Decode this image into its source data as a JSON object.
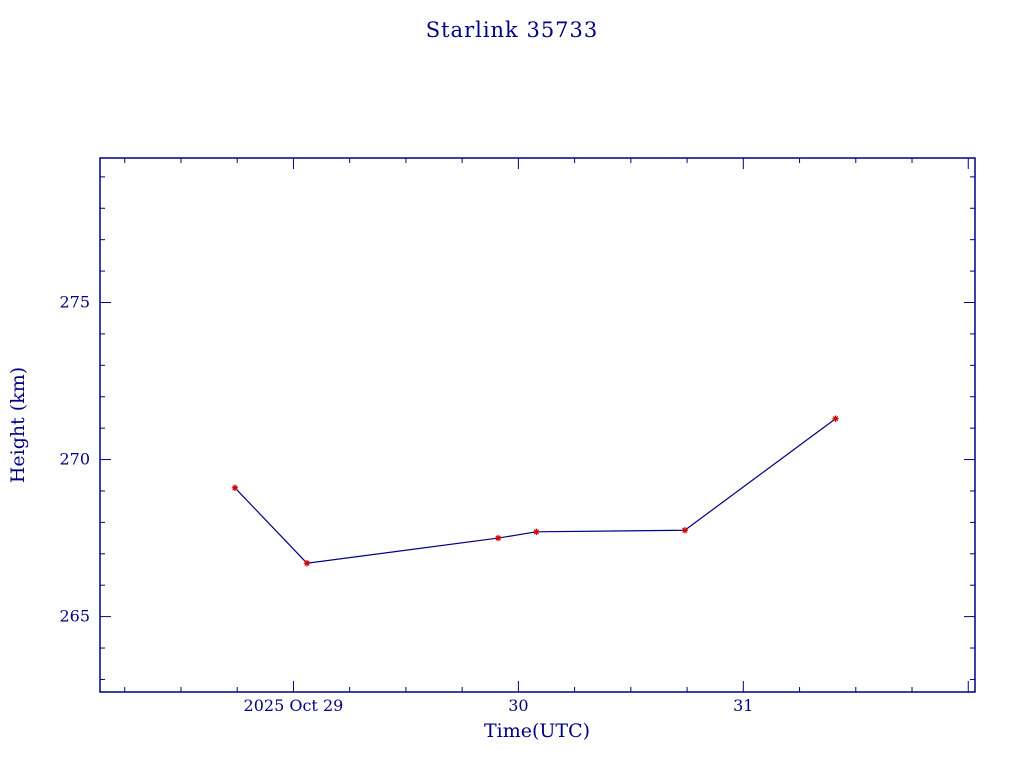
{
  "chart_data": {
    "type": "line",
    "title": "Starlink 35733",
    "xlabel": "Time(UTC)",
    "ylabel": "Height (km)",
    "x_unit": "day of month, 2025 Oct (fractional)",
    "xlim": [
      28.14,
      32.03
    ],
    "ylim": [
      262.6,
      279.6
    ],
    "grid": false,
    "legend": "none",
    "x_major_ticks": [
      {
        "value": 29,
        "label": "2025 Oct 29"
      },
      {
        "value": 30,
        "label": "30"
      },
      {
        "value": 31,
        "label": "31"
      }
    ],
    "x_minor_step": 0.25,
    "y_major_ticks": [
      {
        "value": 265,
        "label": "265"
      },
      {
        "value": 270,
        "label": "270"
      },
      {
        "value": 275,
        "label": "275"
      }
    ],
    "y_minor_step": 1,
    "series": [
      {
        "name": "height",
        "line_color": "#000080",
        "marker": "asterisk",
        "marker_color": "#cc0000",
        "points": [
          {
            "x": 28.74,
            "y": 269.1
          },
          {
            "x": 29.06,
            "y": 266.7
          },
          {
            "x": 29.91,
            "y": 267.5
          },
          {
            "x": 30.08,
            "y": 267.7
          },
          {
            "x": 30.74,
            "y": 267.75
          },
          {
            "x": 31.41,
            "y": 271.3
          }
        ]
      }
    ],
    "colors": {
      "axis": "#000080",
      "text": "#000080",
      "marker": "#cc0000",
      "background": "#ffffff"
    }
  }
}
